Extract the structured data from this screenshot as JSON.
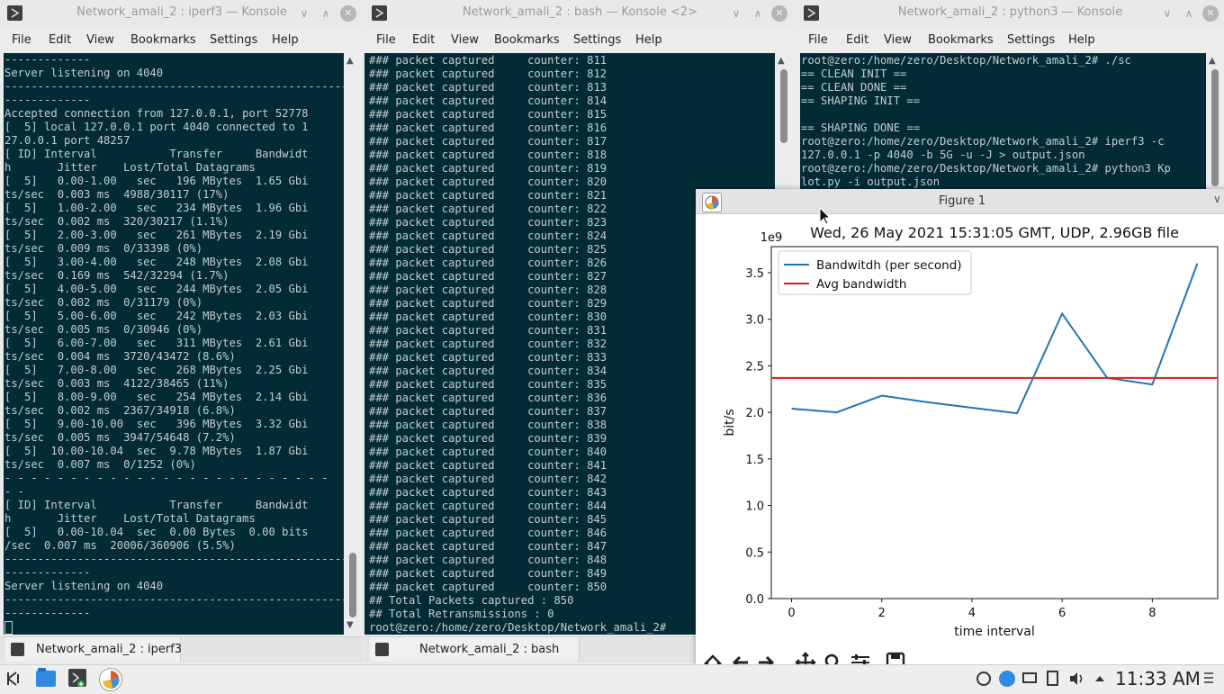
{
  "windows": [
    {
      "title": "Network_amali_2 : iperf3 — Konsole",
      "menu": [
        "File",
        "Edit",
        "View",
        "Bookmarks",
        "Settings",
        "Help"
      ],
      "terminal_text": "-------------\nServer listening on 4040\n-----------------------------------------------------------\n-------------\nAccepted connection from 127.0.0.1, port 52778\n[  5] local 127.0.0.1 port 4040 connected to 1\n27.0.0.1 port 48257\n[ ID] Interval           Transfer     Bandwidt\nh       Jitter    Lost/Total Datagrams\n[  5]   0.00-1.00   sec   196 MBytes  1.65 Gbi\nts/sec  0.003 ms  4988/30117 (17%)\n[  5]   1.00-2.00   sec   234 MBytes  1.96 Gbi\nts/sec  0.002 ms  320/30217 (1.1%)\n[  5]   2.00-3.00   sec   261 MBytes  2.19 Gbi\nts/sec  0.009 ms  0/33398 (0%)\n[  5]   3.00-4.00   sec   248 MBytes  2.08 Gbi\nts/sec  0.169 ms  542/32294 (1.7%)\n[  5]   4.00-5.00   sec   244 MBytes  2.05 Gbi\nts/sec  0.002 ms  0/31179 (0%)\n[  5]   5.00-6.00   sec   242 MBytes  2.03 Gbi\nts/sec  0.005 ms  0/30946 (0%)\n[  5]   6.00-7.00   sec   311 MBytes  2.61 Gbi\nts/sec  0.004 ms  3720/43472 (8.6%)\n[  5]   7.00-8.00   sec   268 MBytes  2.25 Gbi\nts/sec  0.003 ms  4122/38465 (11%)\n[  5]   8.00-9.00   sec   254 MBytes  2.14 Gbi\nts/sec  0.002 ms  2367/34918 (6.8%)\n[  5]   9.00-10.00  sec   396 MBytes  3.32 Gbi\nts/sec  0.005 ms  3947/54648 (7.2%)\n[  5]  10.00-10.04  sec  9.78 MBytes  1.87 Gbi\nts/sec  0.007 ms  0/1252 (0%)\n- - - - - - - - - - - - - - - - - - - - - - - - -\n- -\n[ ID] Interval           Transfer     Bandwidt\nh       Jitter    Lost/Total Datagrams\n[  5]   0.00-10.04  sec  0.00 Bytes  0.00 bits\n/sec  0.007 ms  20006/360906 (5.5%)\n-----------------------------------------------------------\n-------------\nServer listening on 4040\n-----------------------------------------------------------\n-------------\n",
      "tab_label": "Network_amali_2 : iperf3"
    },
    {
      "title": "Network_amali_2 : bash — Konsole <2>",
      "menu": [
        "File",
        "Edit",
        "View",
        "Bookmarks",
        "Settings",
        "Help"
      ],
      "terminal_text": "### packet captured     counter: 811\n### packet captured     counter: 812\n### packet captured     counter: 813\n### packet captured     counter: 814\n### packet captured     counter: 815\n### packet captured     counter: 816\n### packet captured     counter: 817\n### packet captured     counter: 818\n### packet captured     counter: 819\n### packet captured     counter: 820\n### packet captured     counter: 821\n### packet captured     counter: 822\n### packet captured     counter: 823\n### packet captured     counter: 824\n### packet captured     counter: 825\n### packet captured     counter: 826\n### packet captured     counter: 827\n### packet captured     counter: 828\n### packet captured     counter: 829\n### packet captured     counter: 830\n### packet captured     counter: 831\n### packet captured     counter: 832\n### packet captured     counter: 833\n### packet captured     counter: 834\n### packet captured     counter: 835\n### packet captured     counter: 836\n### packet captured     counter: 837\n### packet captured     counter: 838\n### packet captured     counter: 839\n### packet captured     counter: 840\n### packet captured     counter: 841\n### packet captured     counter: 842\n### packet captured     counter: 843\n### packet captured     counter: 844\n### packet captured     counter: 845\n### packet captured     counter: 846\n### packet captured     counter: 847\n### packet captured     counter: 848\n### packet captured     counter: 849\n### packet captured     counter: 850\n## Total Packets captured : 850\n## Total Retransmissions : 0\nroot@zero:/home/zero/Desktop/Network_amali_2#",
      "tab_label": "Network_amali_2 : bash"
    },
    {
      "title": "Network_amali_2 : python3 — Konsole",
      "menu": [
        "File",
        "Edit",
        "View",
        "Bookmarks",
        "Settings",
        "Help"
      ],
      "terminal_text": "root@zero:/home/zero/Desktop/Network_amali_2# ./sc\n== CLEAN INIT ==\n== CLEAN DONE ==\n== SHAPING INIT ==\n\n== SHAPING DONE ==\nroot@zero:/home/zero/Desktop/Network_amali_2# iperf3 -c\n127.0.0.1 -p 4040 -b 5G -u -J > output.json\nroot@zero:/home/zero/Desktop/Network_amali_2# python3 Kp\nlot.py -i output.json"
    }
  ],
  "figure": {
    "title": "Figure 1"
  },
  "chart_data": {
    "type": "line",
    "title": "Wed, 26 May 2021 15:31:05 GMT, UDP, 2.96GB file",
    "xlabel": "time interval",
    "ylabel": "bit/s",
    "y_scale_label": "1e9",
    "x": [
      0,
      1,
      2,
      3,
      4,
      5,
      6,
      7,
      8,
      9
    ],
    "series": [
      {
        "name": "Bandwitdh (per second)",
        "color": "#1f77b4",
        "values": [
          2.04,
          2.0,
          2.18,
          2.11,
          2.05,
          1.99,
          3.06,
          2.37,
          2.3,
          3.6
        ]
      },
      {
        "name": "Avg bandwidth",
        "color": "#e31a1c",
        "values": [
          2.37,
          2.37,
          2.37,
          2.37,
          2.37,
          2.37,
          2.37,
          2.37,
          2.37,
          2.37
        ]
      }
    ],
    "xlim": [
      -0.45,
      9.45
    ],
    "ylim": [
      0.0,
      3.78
    ],
    "xticks": [
      0,
      2,
      4,
      6,
      8
    ],
    "yticks": [
      0.0,
      0.5,
      1.0,
      1.5,
      2.0,
      2.5,
      3.0,
      3.5
    ],
    "ytick_labels": [
      "0.0",
      "0.5",
      "1.0",
      "1.5",
      "2.0",
      "2.5",
      "3.0",
      "3.5"
    ],
    "legend_position": "upper-left",
    "grid": false
  },
  "taskbar": {
    "clock": "11:33 AM"
  },
  "colors": {
    "terminal_bg": "#022b35",
    "terminal_fg": "#c4cdd0"
  },
  "icons": [
    "konsole-icon",
    "kde-menu-icon",
    "file-manager-icon",
    "new-terminal-icon",
    "figure-app-icon",
    "volume-icon",
    "network-icon",
    "clipboard-icon",
    "show-hidden-icon"
  ]
}
